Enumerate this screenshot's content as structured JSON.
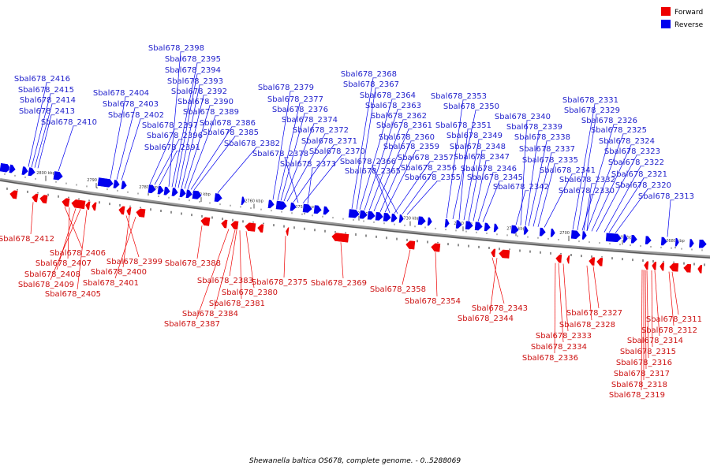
{
  "caption": "Shewanella baltica OS678, complete genome. - 0..5288069",
  "legend": {
    "items": [
      {
        "label": "Forward",
        "color": "#ee0000"
      },
      {
        "label": "Reverse",
        "color": "#0000ee"
      }
    ]
  },
  "colors": {
    "forward": "#ee0000",
    "reverse": "#0000ee",
    "backbone": "#777777"
  },
  "chart_data": {
    "type": "genome-map",
    "ticks": [
      "2800 kbp",
      "2790 kbp",
      "2780 kbp",
      "2770 kbp",
      "2760 kbp",
      "2750 kbp",
      "2740 kbp",
      "2730 kbp",
      "2720 kbp",
      "2710 kbp",
      "2700 kbp",
      "2690 kbp",
      "2680 kbp"
    ],
    "reverse_genes": [
      "Sbal678_2398",
      "Sbal678_2395",
      "Sbal678_2394",
      "Sbal678_2416",
      "Sbal678_2393",
      "Sbal678_2415",
      "Sbal678_2404",
      "Sbal678_2392",
      "Sbal678_2414",
      "Sbal678_2403",
      "Sbal678_2390",
      "Sbal678_2413",
      "Sbal678_2402",
      "Sbal678_2389",
      "Sbal678_2410",
      "Sbal678_2397",
      "Sbal678_2386",
      "Sbal678_2396",
      "Sbal678_2385",
      "Sbal678_2391",
      "Sbal678_2382",
      "Sbal678_2379",
      "Sbal678_2377",
      "Sbal678_2376",
      "Sbal678_2374",
      "Sbal678_2372",
      "Sbal678_2371",
      "Sbal678_2378",
      "Sbal678_2370",
      "Sbal678_2373",
      "Sbal678_2368",
      "Sbal678_2367",
      "Sbal678_2364",
      "Sbal678_2363",
      "Sbal678_2362",
      "Sbal678_2361",
      "Sbal678_2360",
      "Sbal678_2359",
      "Sbal678_2366",
      "Sbal678_2357",
      "Sbal678_2365",
      "Sbal678_2356",
      "Sbal678_2355",
      "Sbal678_2353",
      "Sbal678_2350",
      "Sbal678_2351",
      "Sbal678_2349",
      "Sbal678_2348",
      "Sbal678_2347",
      "Sbal678_2346",
      "Sbal678_2345",
      "Sbal678_2342",
      "Sbal678_2340",
      "Sbal678_2339",
      "Sbal678_2338",
      "Sbal678_2337",
      "Sbal678_2335",
      "Sbal678_2341",
      "Sbal678_2331",
      "Sbal678_2329",
      "Sbal678_2326",
      "Sbal678_2325",
      "Sbal678_2324",
      "Sbal678_2323",
      "Sbal678_2322",
      "Sbal678_2321",
      "Sbal678_2332",
      "Sbal678_2330",
      "Sbal678_2320",
      "Sbal678_2313"
    ],
    "forward_genes": [
      "Sbal678_2412",
      "Sbal678_2406",
      "Sbal678_2407",
      "Sbal678_2408",
      "Sbal678_2409",
      "Sbal678_2405",
      "Sbal678_2399",
      "Sbal678_2400",
      "Sbal678_2401",
      "Sbal678_2388",
      "Sbal678_2383",
      "Sbal678_2380",
      "Sbal678_2381",
      "Sbal678_2384",
      "Sbal678_2387",
      "Sbal678_2375",
      "Sbal678_2369",
      "Sbal678_2358",
      "Sbal678_2354",
      "Sbal678_2343",
      "Sbal678_2344",
      "Sbal678_2327",
      "Sbal678_2328",
      "Sbal678_2333",
      "Sbal678_2334",
      "Sbal678_2336",
      "Sbal678_2311",
      "Sbal678_2312",
      "Sbal678_2314",
      "Sbal678_2315",
      "Sbal678_2316",
      "Sbal678_2317",
      "Sbal678_2318",
      "Sbal678_2319"
    ]
  }
}
